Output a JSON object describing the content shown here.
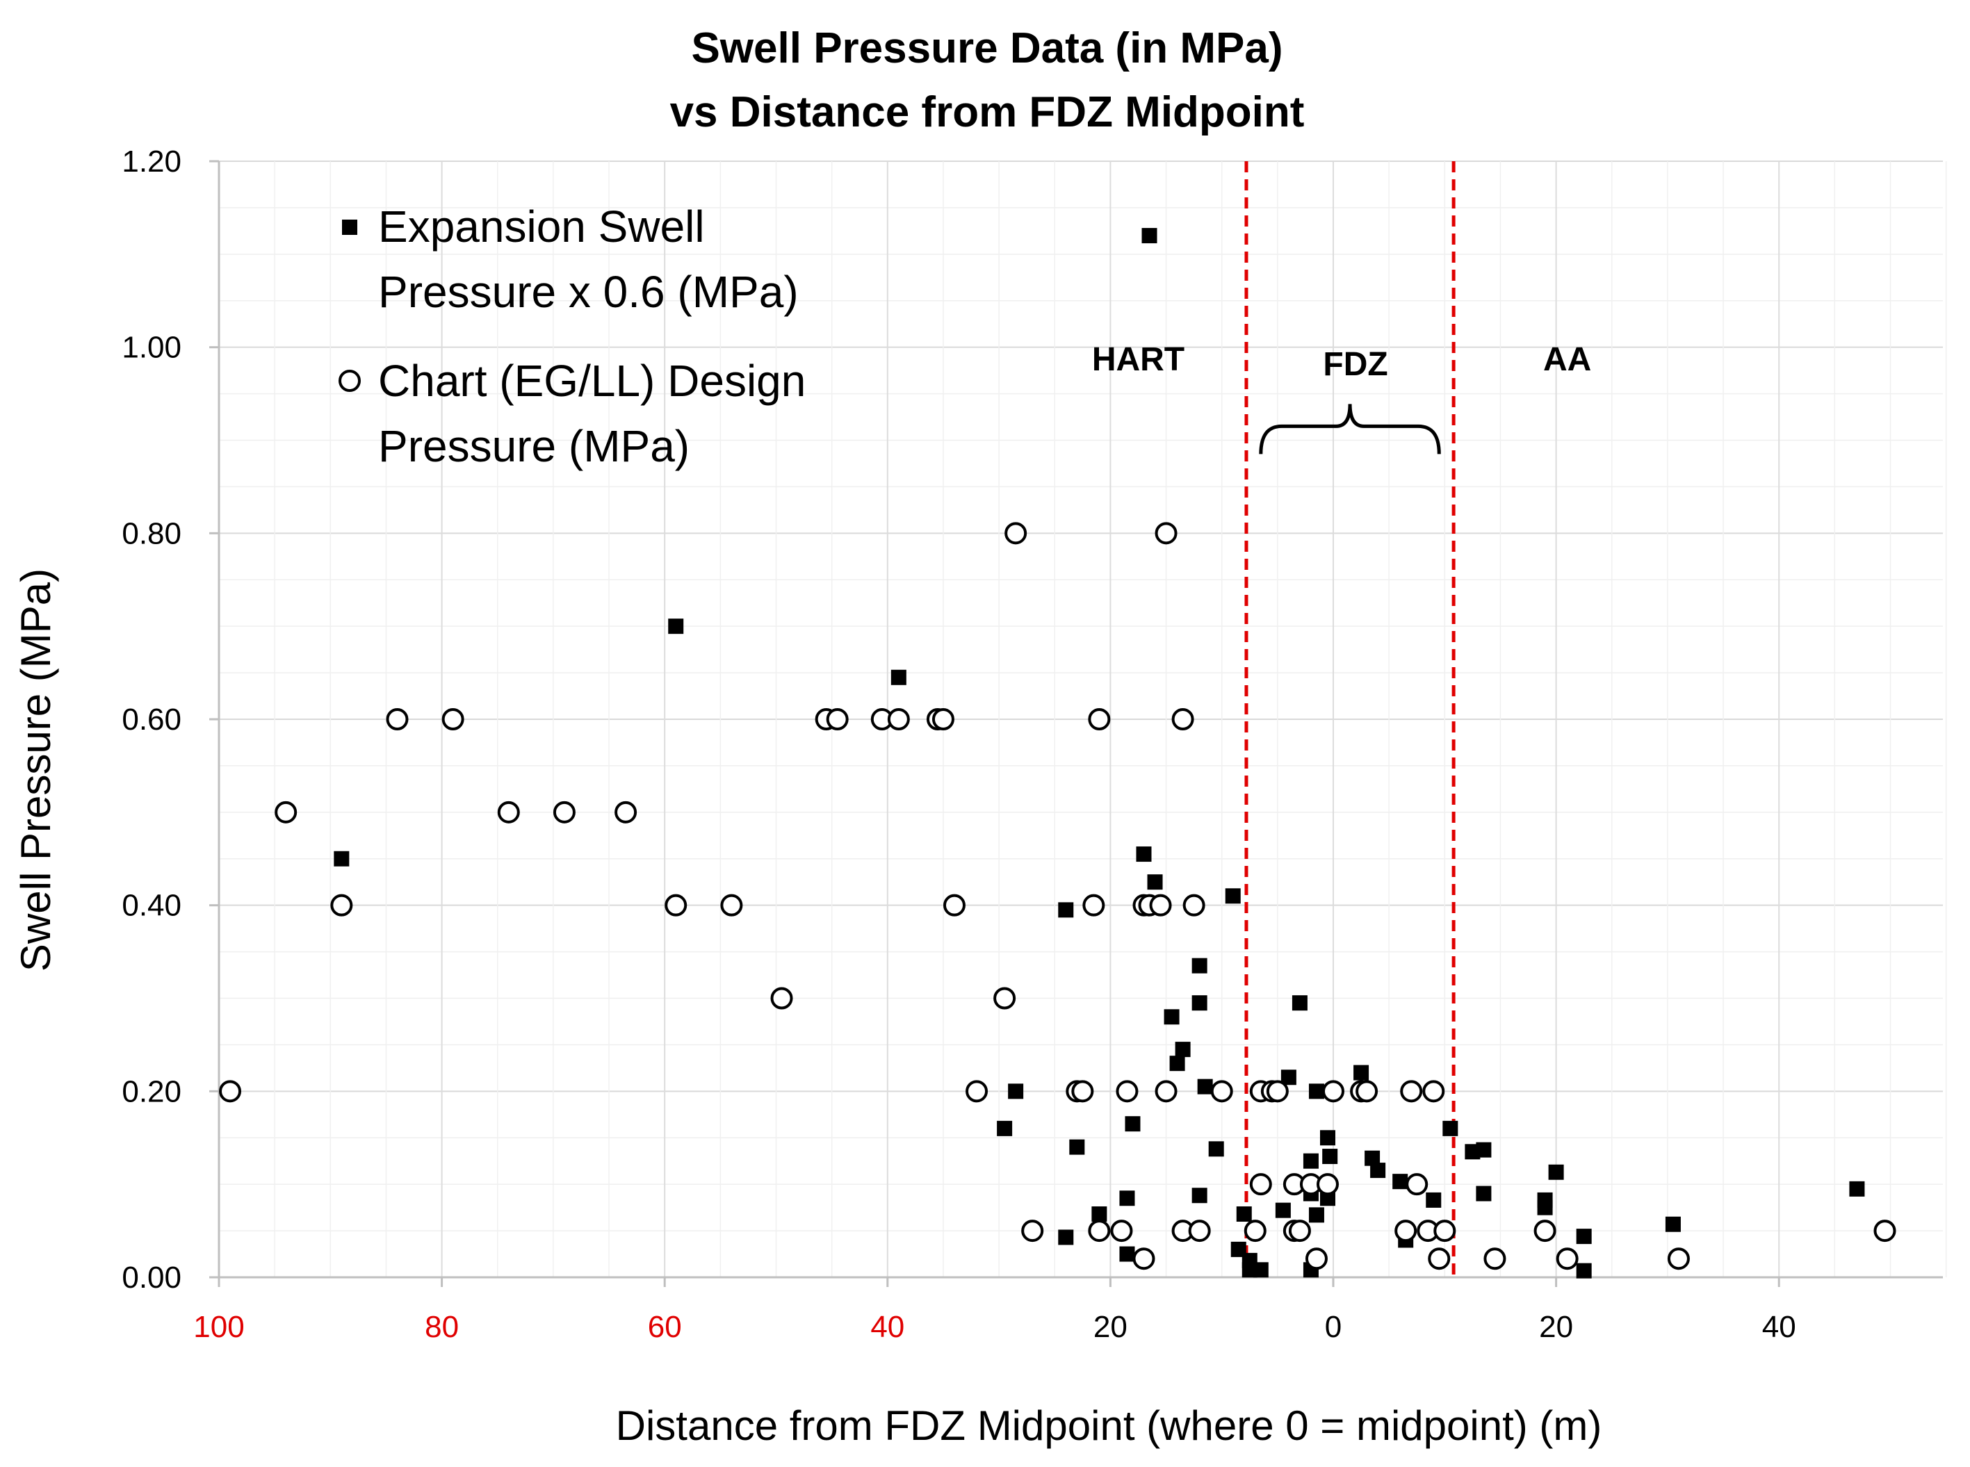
{
  "chart_data": {
    "type": "scatter",
    "title_line1": "Swell Pressure Data (in MPa)",
    "title_line2": "vs Distance from FDZ Midpoint",
    "xlabel": "Distance from FDZ Midpoint (where 0 = midpoint) (m)",
    "ylabel": "Swell Pressure (MPa)",
    "xlim": [
      -100,
      55
    ],
    "ylim": [
      0,
      1.2
    ],
    "x_ticks": [
      {
        "value": -100,
        "label": "100",
        "color": "#e00000"
      },
      {
        "value": -80,
        "label": "80",
        "color": "#e00000"
      },
      {
        "value": -60,
        "label": "60",
        "color": "#e00000"
      },
      {
        "value": -40,
        "label": "40",
        "color": "#e00000"
      },
      {
        "value": -20,
        "label": "20",
        "color": "#000000"
      },
      {
        "value": 0,
        "label": "0",
        "color": "#000000"
      },
      {
        "value": 20,
        "label": "20",
        "color": "#000000"
      },
      {
        "value": 40,
        "label": "40",
        "color": "#000000"
      }
    ],
    "y_ticks": [
      {
        "value": 0,
        "label": "0.00"
      },
      {
        "value": 0.2,
        "label": "0.20"
      },
      {
        "value": 0.4,
        "label": "0.40"
      },
      {
        "value": 0.6,
        "label": "0.60"
      },
      {
        "value": 0.8,
        "label": "0.80"
      },
      {
        "value": 1.0,
        "label": "1.00"
      },
      {
        "value": 1.2,
        "label": "1.20"
      }
    ],
    "grid": true,
    "legend_position": "top-left",
    "series": [
      {
        "name_line1": "Expansion Swell",
        "name_line2": "Pressure x 0.6 (MPa)",
        "marker": "filled-square",
        "color": "#000000",
        "points": [
          [
            -16.5,
            1.12
          ],
          [
            -59.0,
            0.7
          ],
          [
            -39.0,
            0.645
          ],
          [
            -89.0,
            0.45
          ],
          [
            -17.0,
            0.455
          ],
          [
            -16.0,
            0.425
          ],
          [
            -9.0,
            0.41
          ],
          [
            -24.0,
            0.395
          ],
          [
            -12.0,
            0.335
          ],
          [
            -12.0,
            0.295
          ],
          [
            -14.5,
            0.28
          ],
          [
            -3.0,
            0.295
          ],
          [
            -13.5,
            0.245
          ],
          [
            -14.0,
            0.23
          ],
          [
            -11.5,
            0.205
          ],
          [
            -4.0,
            0.215
          ],
          [
            2.5,
            0.22
          ],
          [
            -1.5,
            0.2
          ],
          [
            -28.5,
            0.2
          ],
          [
            -29.5,
            0.16
          ],
          [
            -18.0,
            0.165
          ],
          [
            -0.5,
            0.15
          ],
          [
            10.5,
            0.16
          ],
          [
            -23.0,
            0.14
          ],
          [
            -10.5,
            0.138
          ],
          [
            12.5,
            0.135
          ],
          [
            13.5,
            0.137
          ],
          [
            -0.3,
            0.13
          ],
          [
            -2.0,
            0.125
          ],
          [
            3.5,
            0.128
          ],
          [
            4.0,
            0.115
          ],
          [
            20.0,
            0.113
          ],
          [
            6.0,
            0.103
          ],
          [
            -2.0,
            0.09
          ],
          [
            13.5,
            0.09
          ],
          [
            47.0,
            0.095
          ],
          [
            -12.0,
            0.088
          ],
          [
            -18.5,
            0.085
          ],
          [
            -0.5,
            0.085
          ],
          [
            9.0,
            0.083
          ],
          [
            19.0,
            0.083
          ],
          [
            19.0,
            0.075
          ],
          [
            -4.5,
            0.072
          ],
          [
            -1.5,
            0.067
          ],
          [
            -21.0,
            0.068
          ],
          [
            -8.0,
            0.068
          ],
          [
            30.5,
            0.057
          ],
          [
            -24.0,
            0.043
          ],
          [
            6.5,
            0.04
          ],
          [
            22.5,
            0.044
          ],
          [
            -8.5,
            0.03
          ],
          [
            -18.5,
            0.025
          ],
          [
            -7.5,
            0.018
          ],
          [
            -7.5,
            0.008
          ],
          [
            -6.5,
            0.008
          ],
          [
            -2.0,
            0.008
          ],
          [
            22.5,
            0.007
          ]
        ]
      },
      {
        "name_line1": "Chart (EG/LL) Design",
        "name_line2": "Pressure (MPa)",
        "marker": "open-circle",
        "color": "#000000",
        "points": [
          [
            -28.5,
            0.8
          ],
          [
            -15.0,
            0.8
          ],
          [
            -84.0,
            0.6
          ],
          [
            -79.0,
            0.6
          ],
          [
            -45.5,
            0.6
          ],
          [
            -44.5,
            0.6
          ],
          [
            -40.5,
            0.6
          ],
          [
            -39.0,
            0.6
          ],
          [
            -35.5,
            0.6
          ],
          [
            -35.0,
            0.6
          ],
          [
            -21.0,
            0.6
          ],
          [
            -13.5,
            0.6
          ],
          [
            -94.0,
            0.5
          ],
          [
            -74.0,
            0.5
          ],
          [
            -69.0,
            0.5
          ],
          [
            -63.5,
            0.5
          ],
          [
            -89.0,
            0.4
          ],
          [
            -59.0,
            0.4
          ],
          [
            -54.0,
            0.4
          ],
          [
            -34.0,
            0.4
          ],
          [
            -21.5,
            0.4
          ],
          [
            -17.0,
            0.4
          ],
          [
            -16.5,
            0.4
          ],
          [
            -15.5,
            0.4
          ],
          [
            -12.5,
            0.4
          ],
          [
            -49.5,
            0.3
          ],
          [
            -29.5,
            0.3
          ],
          [
            -99.0,
            0.2
          ],
          [
            -32.0,
            0.2
          ],
          [
            -23.0,
            0.2
          ],
          [
            -22.5,
            0.2
          ],
          [
            -18.5,
            0.2
          ],
          [
            -15.0,
            0.2
          ],
          [
            -10.0,
            0.2
          ],
          [
            -6.5,
            0.2
          ],
          [
            -5.5,
            0.2
          ],
          [
            -5.0,
            0.2
          ],
          [
            0.0,
            0.2
          ],
          [
            2.5,
            0.2
          ],
          [
            3.0,
            0.2
          ],
          [
            7.0,
            0.2
          ],
          [
            9.0,
            0.2
          ],
          [
            -6.5,
            0.1
          ],
          [
            -3.5,
            0.1
          ],
          [
            -2.0,
            0.1
          ],
          [
            -0.5,
            0.1
          ],
          [
            7.5,
            0.1
          ],
          [
            -27.0,
            0.05
          ],
          [
            -21.0,
            0.05
          ],
          [
            -19.0,
            0.05
          ],
          [
            -13.5,
            0.05
          ],
          [
            -12.0,
            0.05
          ],
          [
            -7.0,
            0.05
          ],
          [
            -3.5,
            0.05
          ],
          [
            -3.0,
            0.05
          ],
          [
            6.5,
            0.05
          ],
          [
            8.5,
            0.05
          ],
          [
            10.0,
            0.05
          ],
          [
            19.0,
            0.05
          ],
          [
            49.5,
            0.05
          ],
          [
            -17.0,
            0.02
          ],
          [
            -1.5,
            0.02
          ],
          [
            9.5,
            0.02
          ],
          [
            14.5,
            0.02
          ],
          [
            21.0,
            0.02
          ],
          [
            31.0,
            0.02
          ]
        ]
      }
    ],
    "boundary_lines": {
      "color": "#e00000",
      "style": "dashed",
      "x_values": [
        -7.8,
        10.8
      ]
    },
    "regions": [
      {
        "label": "HART",
        "x": -17.5,
        "y": 0.975
      },
      {
        "label": "FDZ",
        "x": 2.0,
        "y": 0.97
      },
      {
        "label": "AA",
        "x": 21.0,
        "y": 0.975
      }
    ],
    "fdz_brace": {
      "x_from": -6.5,
      "x_to": 9.5,
      "y": 0.915
    }
  }
}
